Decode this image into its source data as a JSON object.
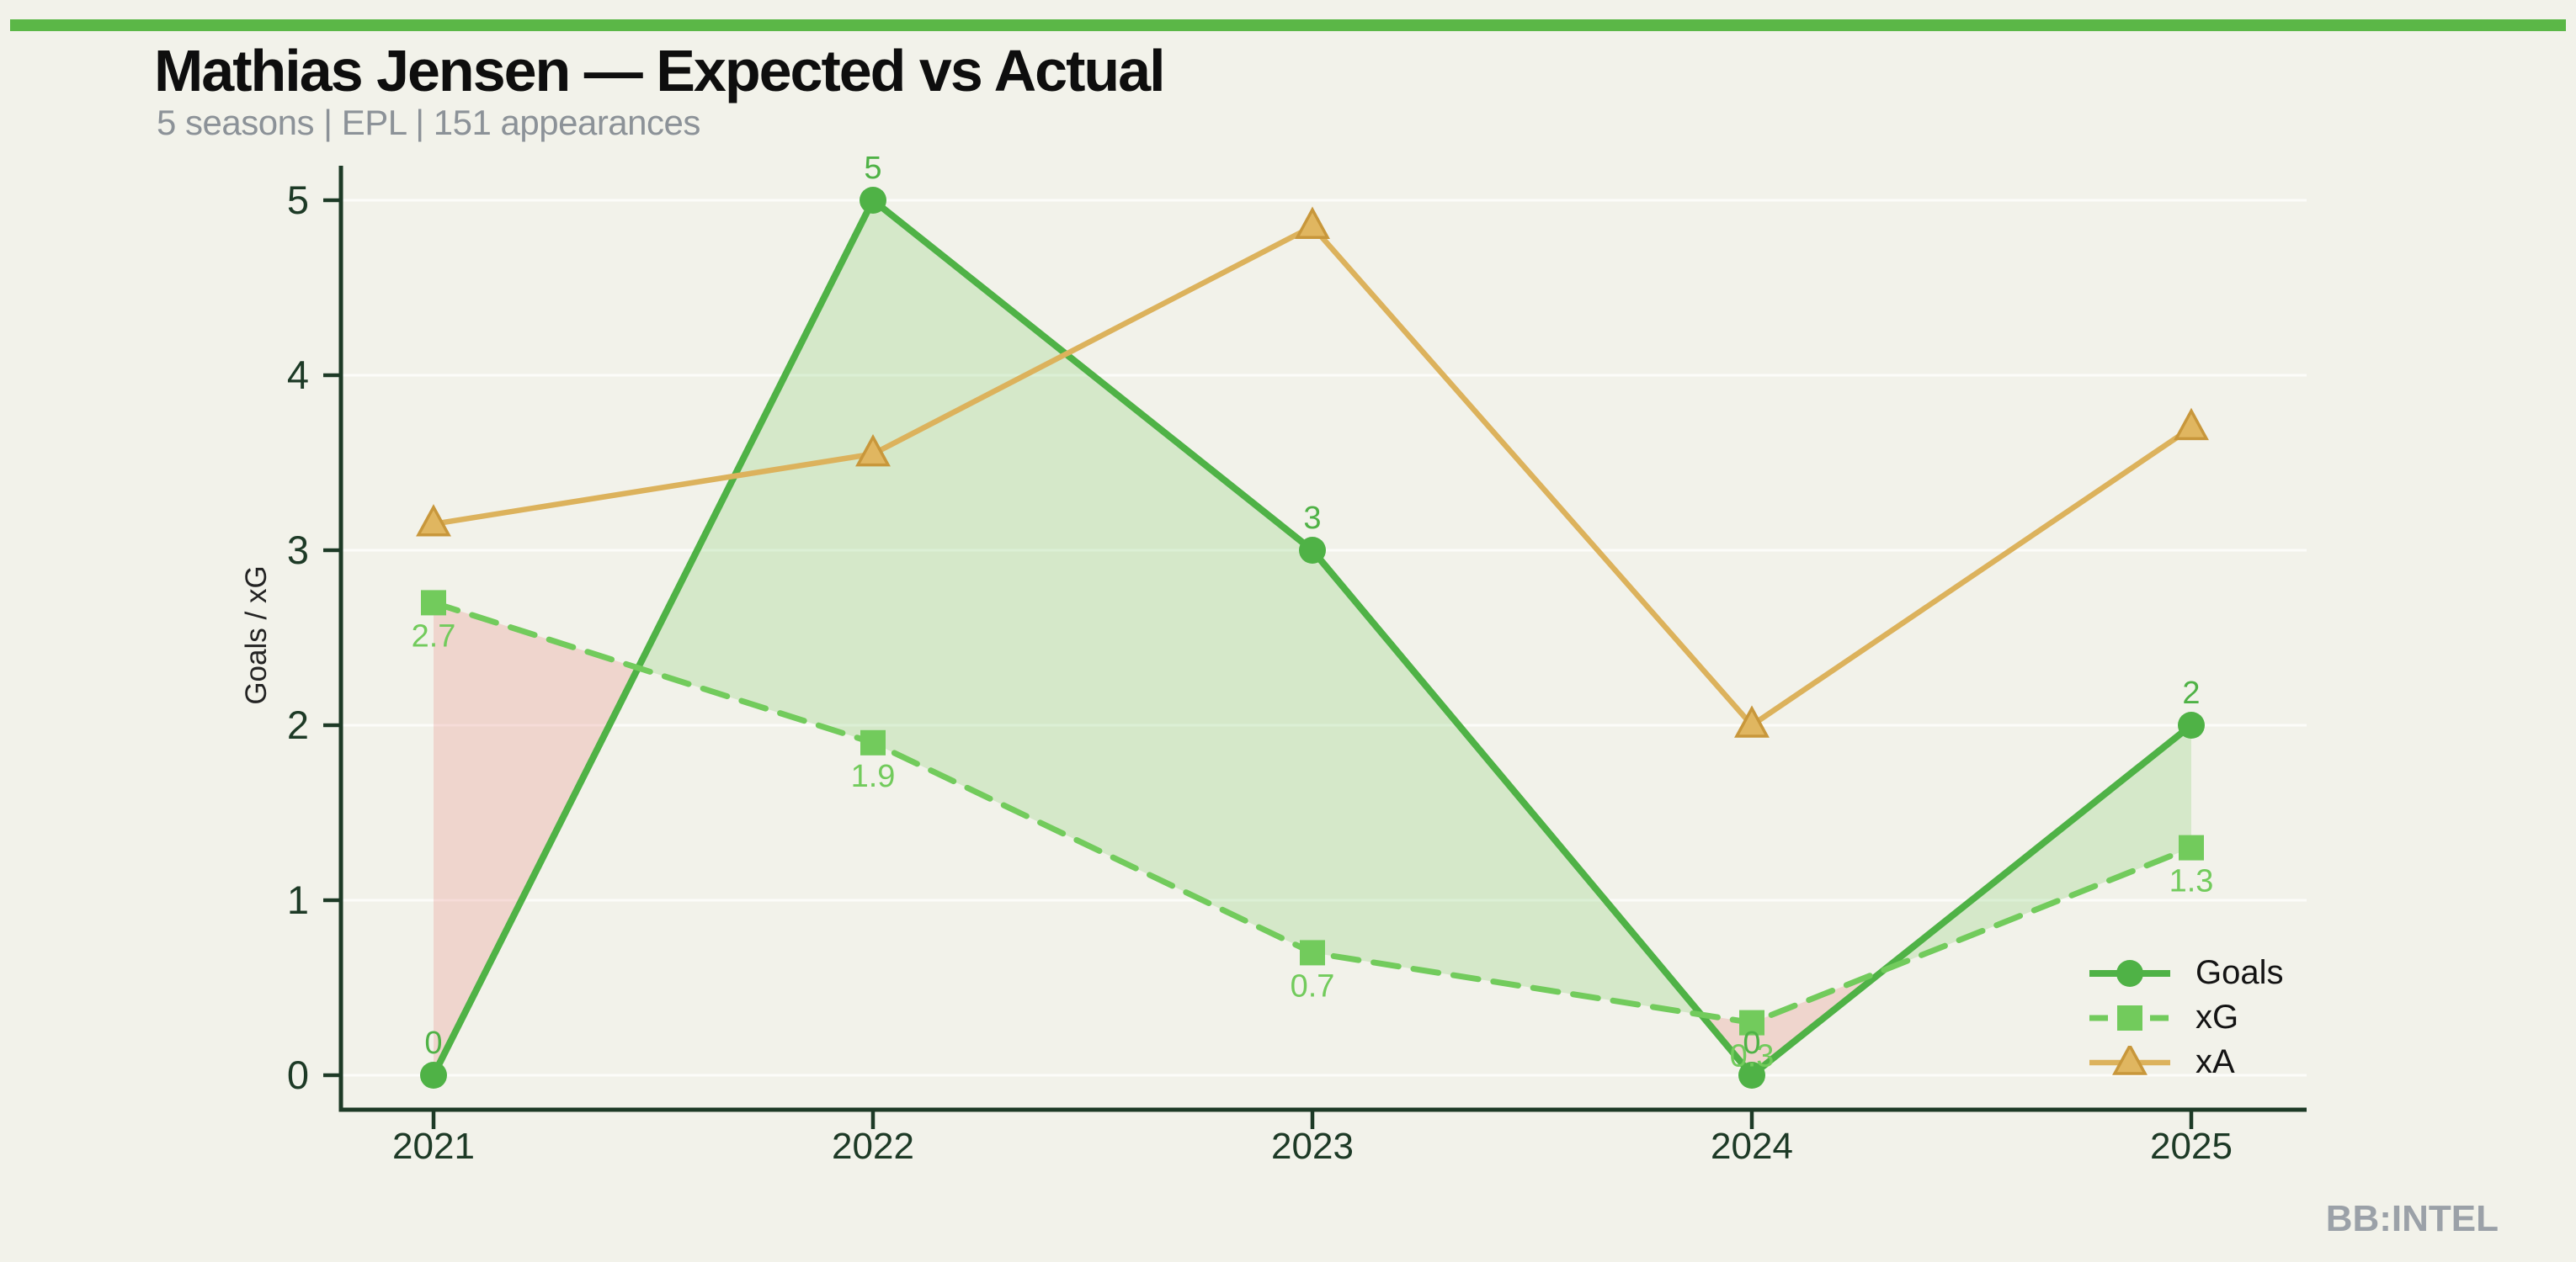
{
  "page": {
    "watermark": "BB:INTEL"
  },
  "colors": {
    "background": "#f2f2ea",
    "top_bar": "#5bb747",
    "title": "#0e0e0e",
    "subtitle": "#8c9298",
    "ylabel": "#232323",
    "axis": "#1d3a26",
    "grid": "rgba(255,255,255,0.72)",
    "legend_text": "#141414",
    "watermark": "#9ba1a8"
  },
  "chart_data": {
    "type": "line",
    "title": "Mathias Jensen — Expected vs Actual",
    "subtitle": "5 seasons | EPL | 151 appearances",
    "ylabel": "Goals / xG",
    "categories": [
      "2021",
      "2022",
      "2023",
      "2024",
      "2025"
    ],
    "yticks": [
      0,
      1,
      2,
      3,
      4,
      5
    ],
    "ylim": [
      0,
      5
    ],
    "grid": "horizontal-only",
    "legend_position": "lower-right",
    "series": [
      {
        "name": "Goals",
        "marker": "circle",
        "line": "solid",
        "color": "#4fb246",
        "values": [
          0,
          5,
          3,
          0,
          2
        ],
        "point_labels": [
          "0",
          "5",
          "3",
          "0",
          "2"
        ],
        "label_side": "above"
      },
      {
        "name": "xG",
        "marker": "square",
        "line": "dashed",
        "color": "#72cb5c",
        "values": [
          2.7,
          1.9,
          0.7,
          0.3,
          1.3
        ],
        "point_labels": [
          "2.7",
          "1.9",
          "0.7",
          "0.3",
          "1.3"
        ],
        "label_side": "below"
      },
      {
        "name": "xA",
        "marker": "triangle",
        "line": "solid",
        "color": "#dcb25c",
        "marker_fill": "#e0b660",
        "marker_edge": "#c8973b",
        "values": [
          3.15,
          3.55,
          4.85,
          2.0,
          3.7
        ],
        "point_labels": [],
        "label_side": "none"
      }
    ],
    "fills": {
      "goals_over_xg": "rgba(110,196,88,0.22)",
      "xg_over_goals": "rgba(230,120,112,0.24)"
    }
  }
}
